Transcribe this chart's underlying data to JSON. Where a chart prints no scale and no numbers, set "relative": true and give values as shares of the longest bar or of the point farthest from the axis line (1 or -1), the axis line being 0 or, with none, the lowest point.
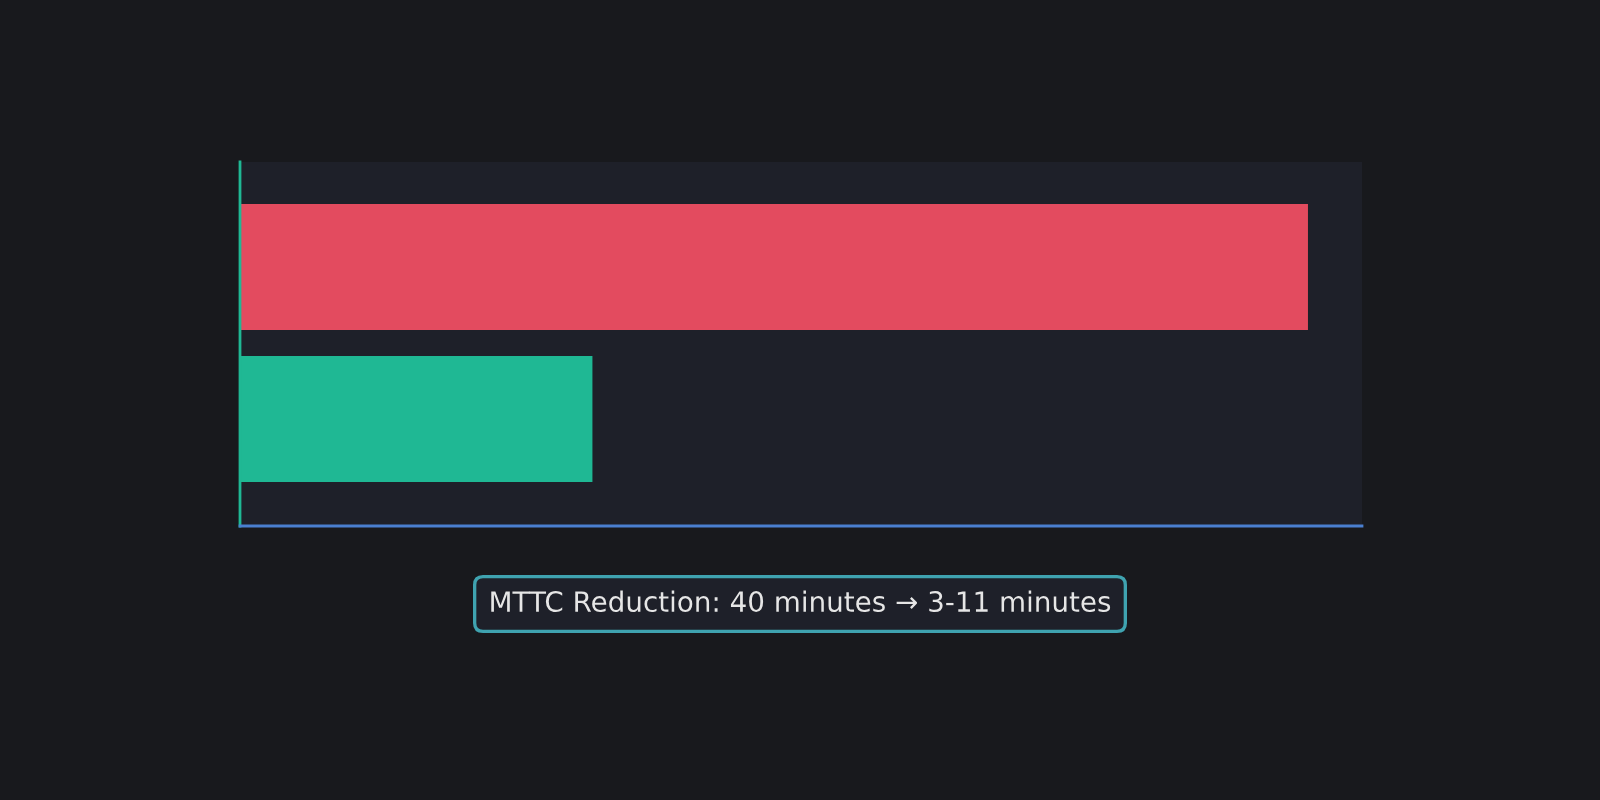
{
  "chart_data": {
    "type": "bar",
    "orientation": "horizontal",
    "relative": true,
    "categories": [
      null,
      null
    ],
    "values": [
      1,
      0.33
    ],
    "colors": [
      "#e34b5f",
      "#1fb894"
    ],
    "annotations": [
      "MTTC Reduction: 40 minutes → 3-11 minutes"
    ]
  }
}
